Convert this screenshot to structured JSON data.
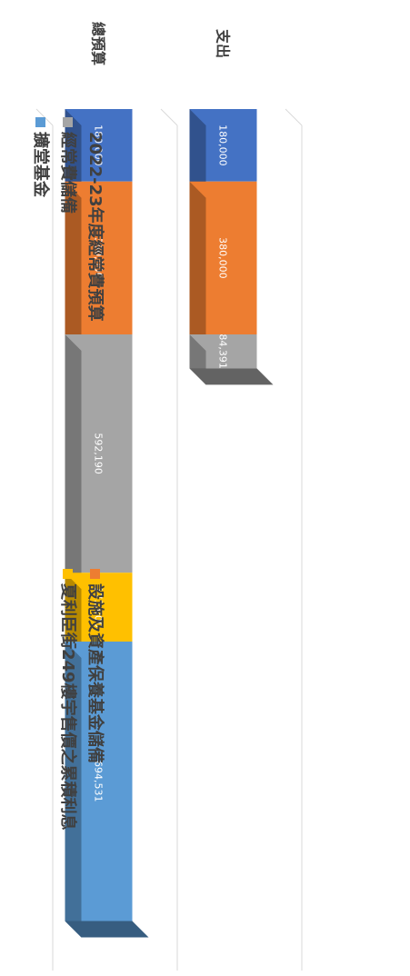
{
  "chart_data": {
    "type": "bar",
    "orientation": "stacked-3d",
    "categories": [
      "支出",
      "總預算"
    ],
    "series": [
      {
        "name": "2022-23年度經常費預算",
        "color": "#4472c4",
        "values": [
          180000,
          180000
        ],
        "labels": [
          "180,000",
          "180,000"
        ]
      },
      {
        "name": "設施及資產保養基金儲備",
        "color": "#ed7d31",
        "values": [
          380000,
          380000
        ],
        "labels": [
          "380,000",
          "380,000"
        ]
      },
      {
        "name": "經常費儲備",
        "color": "#a5a5a5",
        "values": [
          84391,
          592190
        ],
        "labels": [
          "84,391",
          "592,190"
        ]
      },
      {
        "name": "夏利臣街249樓宇售價之累積利息",
        "color": "#ffc000",
        "values": [
          0,
          171000
        ],
        "labels": [
          "",
          "171,000"
        ]
      },
      {
        "name": "擴堂基金",
        "color": "#5b9bd5",
        "values": [
          0,
          694531
        ],
        "labels": [
          "",
          "694,531"
        ]
      }
    ],
    "ylim": [
      0,
      2100000
    ],
    "grid": true,
    "legend_position": "bottom"
  }
}
